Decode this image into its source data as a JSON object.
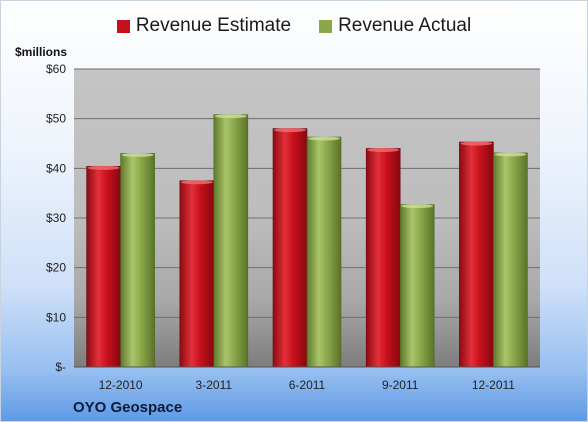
{
  "legend": {
    "estimate_label": "Revenue Estimate",
    "actual_label": "Revenue Actual"
  },
  "unit_label": "$millions",
  "company": "OYO Geospace",
  "colors": {
    "estimate": "#c8101c",
    "actual": "#8aa84a"
  },
  "chart_data": {
    "type": "bar",
    "categories": [
      "12-2010",
      "3-2011",
      "6-2011",
      "9-2011",
      "12-2011"
    ],
    "series": [
      {
        "name": "Revenue Estimate",
        "values": [
          40.4,
          37.5,
          48.0,
          44.0,
          45.3
        ]
      },
      {
        "name": "Revenue Actual",
        "values": [
          43.0,
          50.8,
          46.3,
          32.7,
          43.1
        ]
      }
    ],
    "ylabel": "$millions",
    "ylim": [
      0,
      60
    ],
    "yticks": [
      0,
      10,
      20,
      30,
      40,
      50,
      60
    ],
    "ytick_labels": [
      "$-",
      "$10",
      "$20",
      "$30",
      "$40",
      "$50",
      "$60"
    ],
    "grid": true,
    "legend_position": "top"
  }
}
